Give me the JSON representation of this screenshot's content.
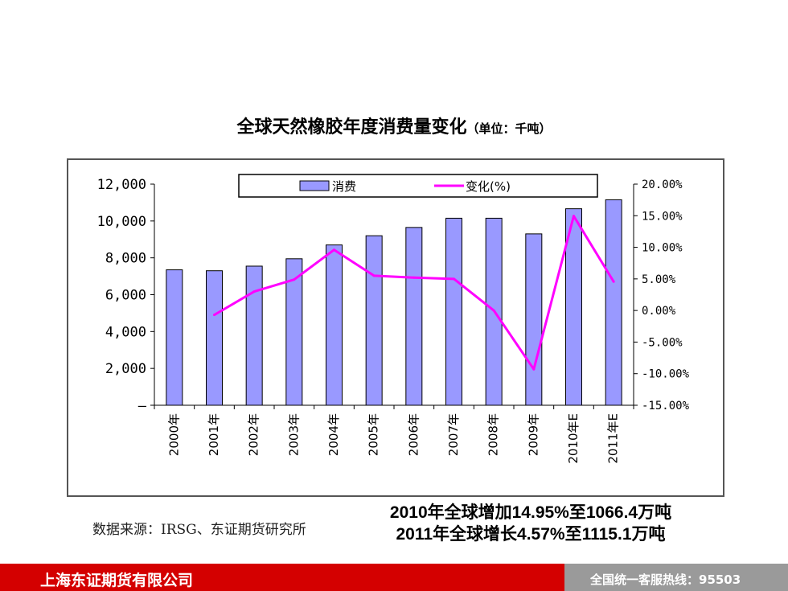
{
  "title": "全球天然橡胶年度消费量变化",
  "unit": "（单位：千吨）",
  "source": "数据来源：IRSG、东证期货研究所",
  "notes": [
    "2010年全球增加14.95%至1066.4万吨",
    "2011年全球增长4.57%至1115.1万吨"
  ],
  "footer": {
    "company": "上海东证期货有限公司",
    "hotline": "全国统一客服热线：95503"
  },
  "chart_data": {
    "type": "bar",
    "categories": [
      "2000年",
      "2001年",
      "2002年",
      "2003年",
      "2004年",
      "2005年",
      "2006年",
      "2007年",
      "2008年",
      "2009年",
      "2010年E",
      "2011年E"
    ],
    "series": [
      {
        "name": "消费",
        "type": "bar",
        "axis": "left",
        "values": [
          7350,
          7300,
          7550,
          7950,
          8700,
          9200,
          9650,
          10150,
          10150,
          9300,
          10664,
          11151
        ],
        "color": "#9999ff"
      },
      {
        "name": "变化(%)",
        "type": "line",
        "axis": "right",
        "values": [
          null,
          -0.7,
          3.0,
          4.9,
          9.6,
          5.5,
          5.2,
          5.0,
          0.0,
          -9.3,
          14.95,
          4.57
        ],
        "color": "#ff00ff"
      }
    ],
    "y_left": {
      "ylim": [
        0,
        12000
      ],
      "ticks": [
        "–",
        "2,000",
        "4,000",
        "6,000",
        "8,000",
        "10,000",
        "12,000"
      ]
    },
    "y_right": {
      "ylim": [
        -15,
        20
      ],
      "ticks": [
        "-15.00%",
        "-10.00%",
        "-5.00%",
        "0.00%",
        "5.00%",
        "10.00%",
        "15.00%",
        "20.00%"
      ]
    },
    "legend": {
      "position": "top",
      "entries": [
        "消费",
        "变化(%)"
      ]
    },
    "grid": false
  }
}
